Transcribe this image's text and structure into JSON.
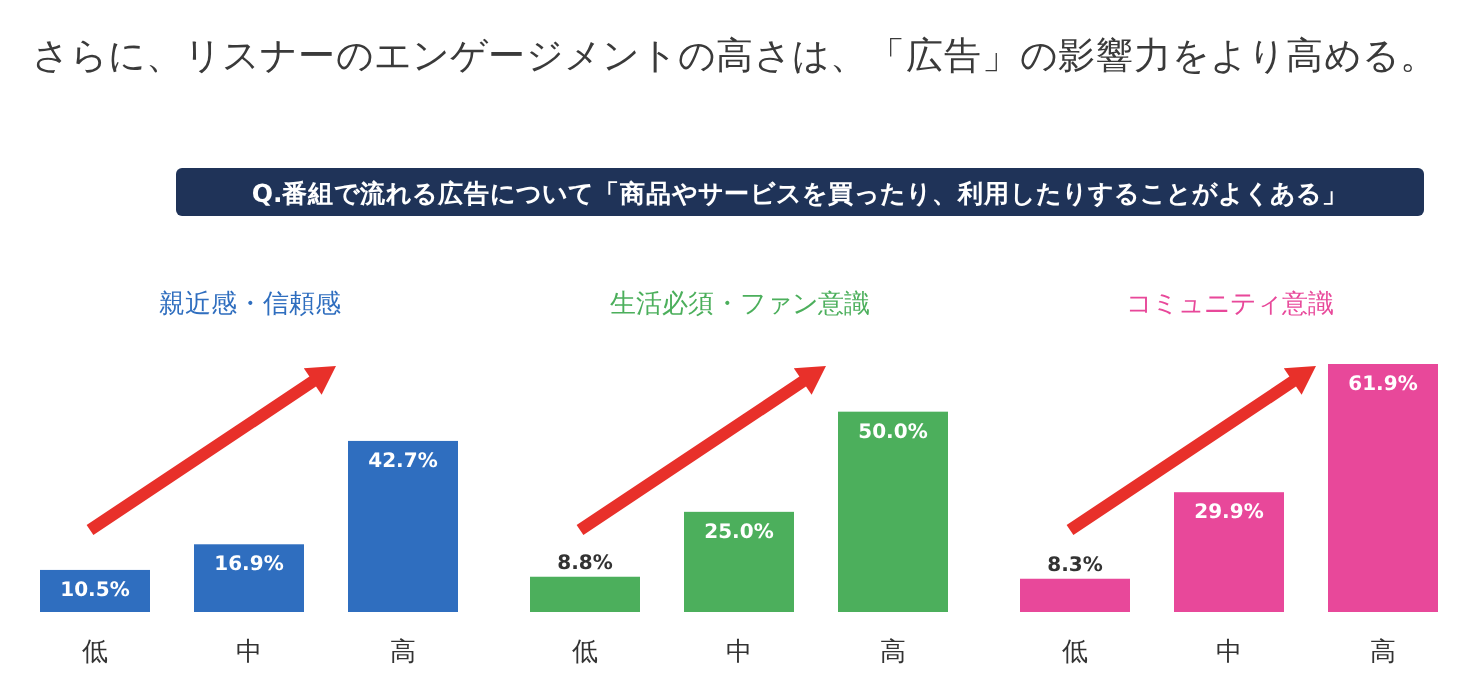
{
  "chart_data": [
    {
      "type": "bar",
      "title": "さらに、リスナーのエンゲージメントの高さは、「広告」の影響力をより高める。",
      "subtitle": "Q.番組で流れる広告について「商品やサービスを買ったり、利用したりすることがよくある」",
      "annotations": [
        "親近感・信頼感"
      ],
      "categories": [
        "低",
        "中",
        "高"
      ],
      "values": [
        10.5,
        16.9,
        42.7
      ],
      "value_labels": [
        "10.5%",
        "16.9%",
        "42.7%"
      ],
      "color": "#2f6ebf"
    },
    {
      "type": "bar",
      "annotations": [
        "生活必須・ファン意識"
      ],
      "categories": [
        "低",
        "中",
        "高"
      ],
      "values": [
        8.8,
        25.0,
        50.0
      ],
      "value_labels": [
        "8.8%",
        "25.0%",
        "50.0%"
      ],
      "color": "#4caf5c"
    },
    {
      "type": "bar",
      "annotations": [
        "コミュニティ意識"
      ],
      "categories": [
        "低",
        "中",
        "高"
      ],
      "values": [
        8.3,
        29.9,
        61.9
      ],
      "value_labels": [
        "8.3%",
        "29.9%",
        "61.9%"
      ],
      "color": "#e8489a"
    }
  ]
}
